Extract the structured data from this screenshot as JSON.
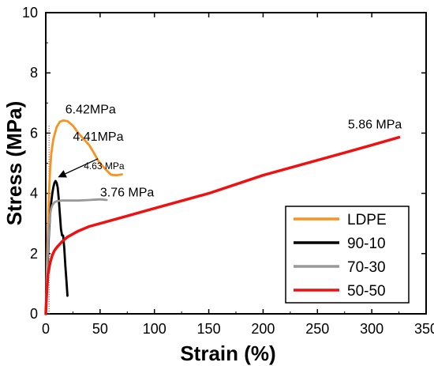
{
  "chart_data": {
    "type": "line",
    "xlabel": "Strain (%)",
    "ylabel": "Stress (MPa)",
    "xlim": [
      0,
      350
    ],
    "ylim": [
      0,
      10
    ],
    "x_ticks": [
      "0",
      "50",
      "100",
      "150",
      "200",
      "250",
      "300",
      "350"
    ],
    "y_ticks": [
      "0",
      "2",
      "4",
      "6",
      "8",
      "10"
    ],
    "grid": false,
    "legend_position": "bottom-right",
    "series": [
      {
        "name": "LDPE",
        "color": "#f7931e",
        "x": [
          0,
          1,
          2,
          3,
          4,
          5,
          7,
          10,
          13,
          16,
          20,
          25,
          30,
          35,
          40,
          45,
          48,
          50,
          55,
          60,
          65,
          70
        ],
        "y": [
          0,
          1.5,
          2.9,
          4.0,
          4.8,
          5.3,
          5.8,
          6.2,
          6.38,
          6.42,
          6.4,
          6.25,
          6.0,
          5.8,
          5.6,
          5.3,
          5.1,
          5.0,
          4.8,
          4.62,
          4.6,
          4.63
        ]
      },
      {
        "name": "90-10",
        "color": "#000000",
        "x": [
          0,
          1,
          2,
          3,
          4,
          5,
          6,
          7,
          8,
          9,
          10,
          11,
          12,
          13,
          14,
          15,
          16,
          17,
          18,
          19,
          20
        ],
        "y": [
          0,
          1.0,
          1.9,
          2.7,
          3.3,
          3.7,
          4.0,
          4.2,
          4.35,
          4.41,
          4.35,
          4.2,
          3.8,
          3.3,
          2.8,
          2.6,
          2.6,
          2.2,
          1.6,
          1.1,
          0.6
        ]
      },
      {
        "name": "70-30",
        "color": "#999999",
        "x": [
          0,
          1,
          2,
          3,
          4,
          5,
          6,
          8,
          10,
          14,
          20,
          30,
          40,
          50,
          56
        ],
        "y": [
          0,
          1.2,
          2.2,
          2.9,
          3.3,
          3.5,
          3.6,
          3.7,
          3.74,
          3.76,
          3.76,
          3.76,
          3.78,
          3.8,
          3.78
        ]
      },
      {
        "name": "50-50",
        "color": "#ee1111",
        "x": [
          0,
          1,
          2,
          4,
          6,
          8,
          10,
          15,
          20,
          30,
          40,
          50,
          75,
          100,
          125,
          150,
          175,
          200,
          225,
          250,
          275,
          300,
          325
        ],
        "y": [
          0,
          0.8,
          1.3,
          1.7,
          1.95,
          2.1,
          2.2,
          2.4,
          2.55,
          2.75,
          2.9,
          3.0,
          3.25,
          3.5,
          3.75,
          4.0,
          4.3,
          4.6,
          4.85,
          5.1,
          5.35,
          5.6,
          5.86
        ]
      }
    ],
    "annotations": [
      {
        "text": "6.42MPa",
        "x": 18,
        "y": 6.65,
        "size": 16
      },
      {
        "text": "4.41MPa",
        "x": 25,
        "y": 5.75,
        "size": 16
      },
      {
        "text": "4.63 MPa",
        "x": 35,
        "y": 4.8,
        "size": 12
      },
      {
        "text": "3.76 MPa",
        "x": 50,
        "y": 3.9,
        "size": 16
      },
      {
        "text": "5.86 MPa",
        "x": 278,
        "y": 6.15,
        "size": 16
      }
    ]
  }
}
